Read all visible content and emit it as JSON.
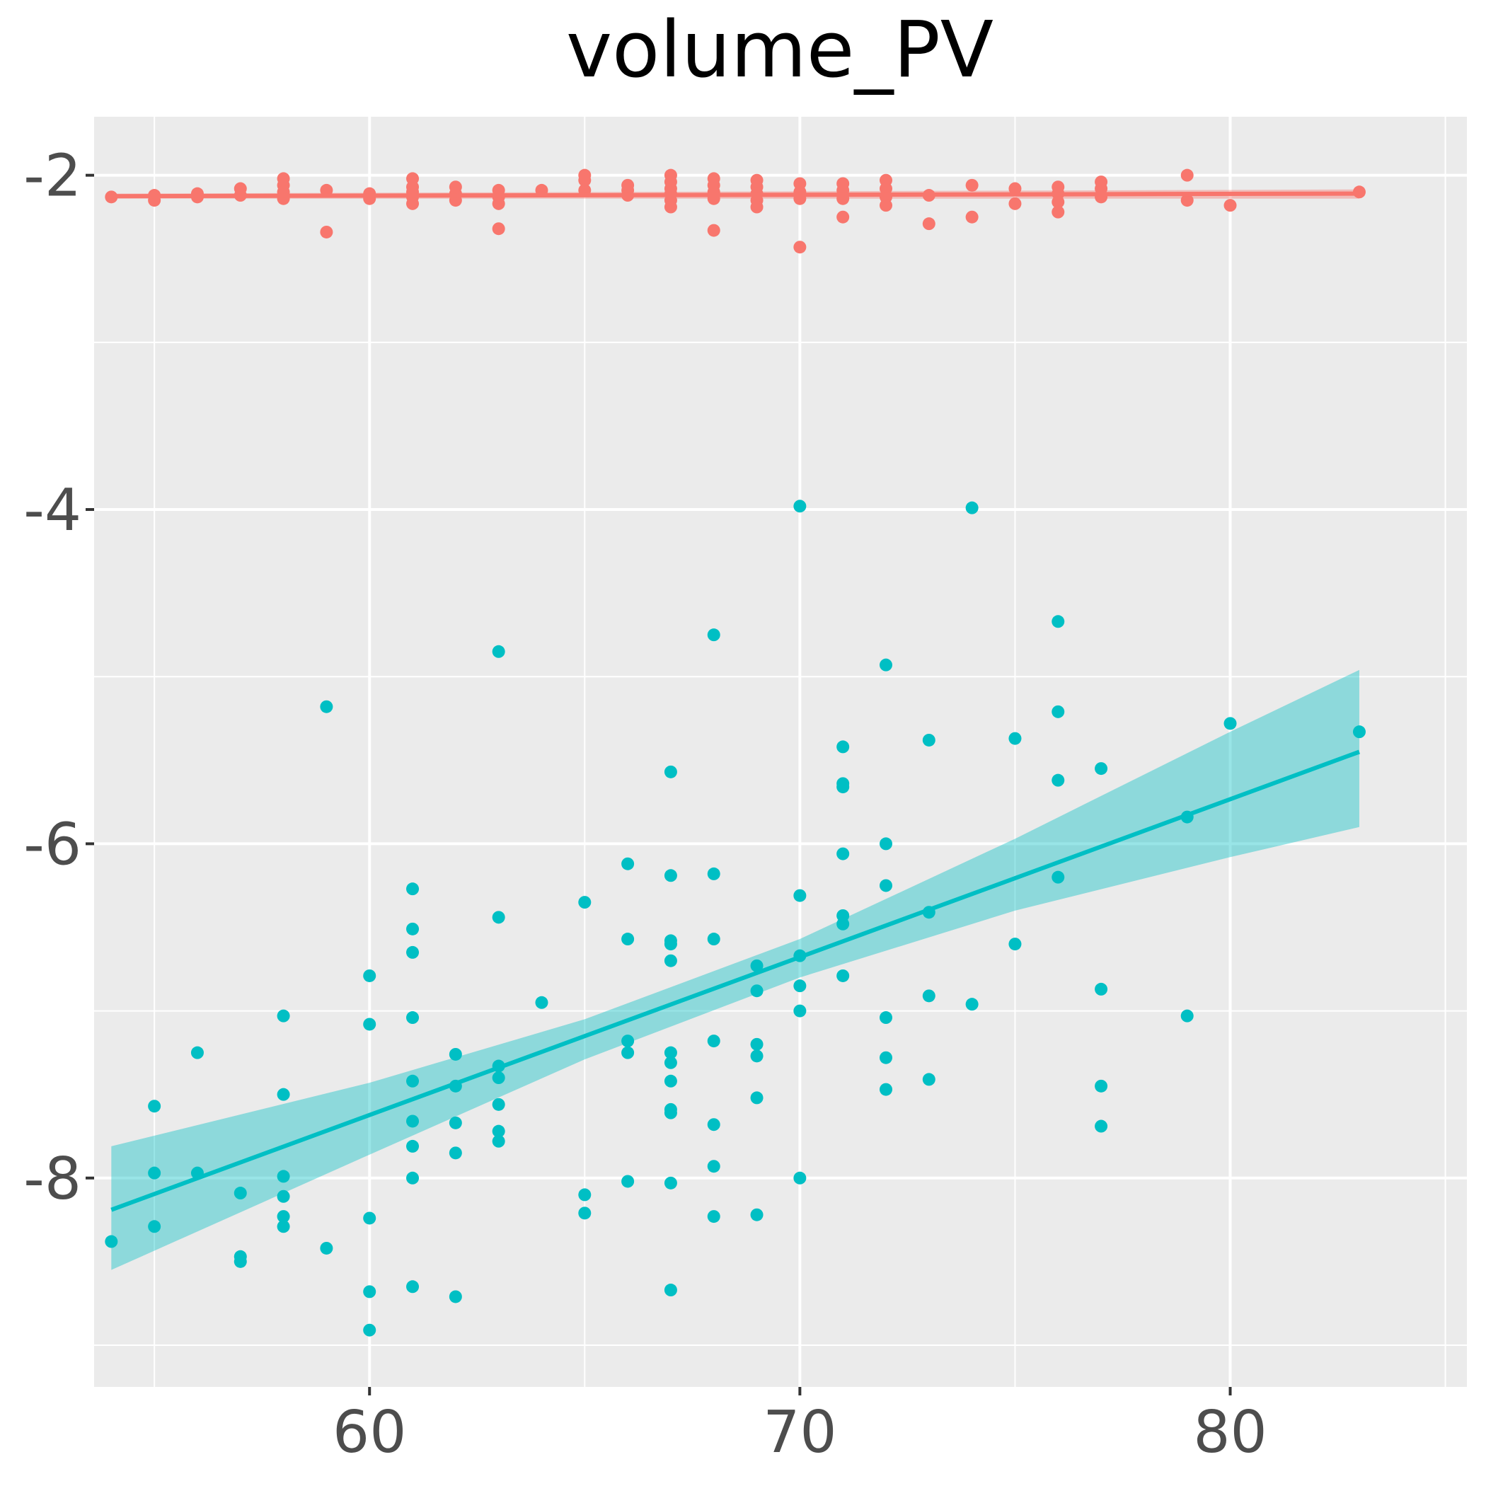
{
  "chart_data": {
    "type": "scatter",
    "title": "volume_PV",
    "xlabel": "",
    "ylabel": "",
    "xlim": [
      53.6,
      85.5
    ],
    "ylim": [
      -9.25,
      -1.65
    ],
    "x_ticks": [
      60,
      70,
      80
    ],
    "y_ticks": [
      -2,
      -4,
      -6,
      -8
    ],
    "grid": true,
    "legend": "none",
    "colors": {
      "panel": "#ebebeb",
      "grid": "#ffffff",
      "series_red": "#f8766d",
      "series_teal": "#00bfc4",
      "ribbon_teal": "#00bfc4"
    },
    "series": [
      {
        "color": "#f8766d",
        "points": [
          [
            54,
            -2.13
          ],
          [
            55,
            -2.12
          ],
          [
            55,
            -2.15
          ],
          [
            56,
            -2.11
          ],
          [
            56,
            -2.13
          ],
          [
            57,
            -2.08
          ],
          [
            57,
            -2.12
          ],
          [
            58,
            -2.02
          ],
          [
            58,
            -2.06
          ],
          [
            58,
            -2.1
          ],
          [
            58,
            -2.14
          ],
          [
            59,
            -2.09
          ],
          [
            59,
            -2.34
          ],
          [
            60,
            -2.11
          ],
          [
            60,
            -2.14
          ],
          [
            61,
            -2.02
          ],
          [
            61,
            -2.07
          ],
          [
            61,
            -2.1
          ],
          [
            61,
            -2.13
          ],
          [
            61,
            -2.17
          ],
          [
            62,
            -2.07
          ],
          [
            62,
            -2.11
          ],
          [
            62,
            -2.15
          ],
          [
            63,
            -2.09
          ],
          [
            63,
            -2.13
          ],
          [
            63,
            -2.17
          ],
          [
            63,
            -2.32
          ],
          [
            64,
            -2.09
          ],
          [
            65,
            -2.0
          ],
          [
            65,
            -2.03
          ],
          [
            65,
            -2.09
          ],
          [
            66,
            -2.06
          ],
          [
            66,
            -2.09
          ],
          [
            66,
            -2.12
          ],
          [
            67,
            -2.0
          ],
          [
            67,
            -2.04
          ],
          [
            67,
            -2.08
          ],
          [
            67,
            -2.11
          ],
          [
            67,
            -2.15
          ],
          [
            67,
            -2.19
          ],
          [
            68,
            -2.02
          ],
          [
            68,
            -2.06
          ],
          [
            68,
            -2.1
          ],
          [
            68,
            -2.14
          ],
          [
            68,
            -2.33
          ],
          [
            69,
            -2.03
          ],
          [
            69,
            -2.07
          ],
          [
            69,
            -2.11
          ],
          [
            69,
            -2.15
          ],
          [
            69,
            -2.19
          ],
          [
            70,
            -2.05
          ],
          [
            70,
            -2.1
          ],
          [
            70,
            -2.14
          ],
          [
            70,
            -2.43
          ],
          [
            71,
            -2.05
          ],
          [
            71,
            -2.09
          ],
          [
            71,
            -2.14
          ],
          [
            71,
            -2.25
          ],
          [
            72,
            -2.03
          ],
          [
            72,
            -2.08
          ],
          [
            72,
            -2.13
          ],
          [
            72,
            -2.18
          ],
          [
            73,
            -2.12
          ],
          [
            73,
            -2.29
          ],
          [
            74,
            -2.06
          ],
          [
            74,
            -2.25
          ],
          [
            75,
            -2.08
          ],
          [
            75,
            -2.17
          ],
          [
            76,
            -2.07
          ],
          [
            76,
            -2.11
          ],
          [
            76,
            -2.16
          ],
          [
            76,
            -2.22
          ],
          [
            77,
            -2.04
          ],
          [
            77,
            -2.08
          ],
          [
            77,
            -2.13
          ],
          [
            79,
            -2.0
          ],
          [
            79,
            -2.15
          ],
          [
            80,
            -2.18
          ],
          [
            83,
            -2.1
          ]
        ],
        "fit": [
          [
            54,
            -2.125
          ],
          [
            83,
            -2.11
          ]
        ],
        "band": [
          [
            54,
            -2.14,
            -2.11
          ],
          [
            83,
            -2.14,
            -2.085
          ]
        ]
      },
      {
        "color": "#00bfc4",
        "points": [
          [
            54,
            -8.38
          ],
          [
            55,
            -7.57
          ],
          [
            55,
            -7.97
          ],
          [
            55,
            -8.29
          ],
          [
            56,
            -7.25
          ],
          [
            56,
            -7.97
          ],
          [
            57,
            -8.09
          ],
          [
            57,
            -8.47
          ],
          [
            57,
            -8.5
          ],
          [
            58,
            -7.03
          ],
          [
            58,
            -7.5
          ],
          [
            58,
            -7.99
          ],
          [
            58,
            -8.11
          ],
          [
            58,
            -8.23
          ],
          [
            58,
            -8.29
          ],
          [
            59,
            -5.18
          ],
          [
            59,
            -8.42
          ],
          [
            60,
            -6.79
          ],
          [
            60,
            -7.08
          ],
          [
            60,
            -8.24
          ],
          [
            60,
            -8.68
          ],
          [
            60,
            -8.91
          ],
          [
            61,
            -6.27
          ],
          [
            61,
            -6.51
          ],
          [
            61,
            -6.65
          ],
          [
            61,
            -7.04
          ],
          [
            61,
            -7.42
          ],
          [
            61,
            -7.66
          ],
          [
            61,
            -7.81
          ],
          [
            61,
            -8.0
          ],
          [
            61,
            -8.65
          ],
          [
            62,
            -7.26
          ],
          [
            62,
            -7.45
          ],
          [
            62,
            -7.67
          ],
          [
            62,
            -7.85
          ],
          [
            62,
            -8.71
          ],
          [
            63,
            -4.85
          ],
          [
            63,
            -6.44
          ],
          [
            63,
            -7.33
          ],
          [
            63,
            -7.4
          ],
          [
            63,
            -7.56
          ],
          [
            63,
            -7.72
          ],
          [
            63,
            -7.78
          ],
          [
            64,
            -6.95
          ],
          [
            65,
            -6.35
          ],
          [
            65,
            -8.1
          ],
          [
            65,
            -8.21
          ],
          [
            66,
            -6.12
          ],
          [
            66,
            -6.57
          ],
          [
            66,
            -7.18
          ],
          [
            66,
            -7.25
          ],
          [
            66,
            -8.02
          ],
          [
            67,
            -5.57
          ],
          [
            67,
            -6.19
          ],
          [
            67,
            -6.58
          ],
          [
            67,
            -6.6
          ],
          [
            67,
            -6.7
          ],
          [
            67,
            -7.25
          ],
          [
            67,
            -7.31
          ],
          [
            67,
            -7.42
          ],
          [
            67,
            -7.59
          ],
          [
            67,
            -7.61
          ],
          [
            67,
            -8.03
          ],
          [
            67,
            -8.67
          ],
          [
            68,
            -4.75
          ],
          [
            68,
            -6.18
          ],
          [
            68,
            -6.57
          ],
          [
            68,
            -7.18
          ],
          [
            68,
            -7.68
          ],
          [
            68,
            -7.93
          ],
          [
            68,
            -8.23
          ],
          [
            69,
            -6.73
          ],
          [
            69,
            -6.88
          ],
          [
            69,
            -7.2
          ],
          [
            69,
            -7.27
          ],
          [
            69,
            -7.52
          ],
          [
            69,
            -8.22
          ],
          [
            70,
            -3.98
          ],
          [
            70,
            -6.31
          ],
          [
            70,
            -6.67
          ],
          [
            70,
            -6.85
          ],
          [
            70,
            -7.0
          ],
          [
            70,
            -8.0
          ],
          [
            71,
            -5.42
          ],
          [
            71,
            -5.64
          ],
          [
            71,
            -5.66
          ],
          [
            71,
            -6.06
          ],
          [
            71,
            -6.43
          ],
          [
            71,
            -6.48
          ],
          [
            71,
            -6.79
          ],
          [
            72,
            -4.93
          ],
          [
            72,
            -6.0
          ],
          [
            72,
            -6.25
          ],
          [
            72,
            -7.04
          ],
          [
            72,
            -7.28
          ],
          [
            72,
            -7.47
          ],
          [
            73,
            -5.38
          ],
          [
            73,
            -6.41
          ],
          [
            73,
            -6.91
          ],
          [
            73,
            -7.41
          ],
          [
            74,
            -3.99
          ],
          [
            74,
            -6.96
          ],
          [
            75,
            -5.37
          ],
          [
            75,
            -6.6
          ],
          [
            76,
            -4.67
          ],
          [
            76,
            -5.21
          ],
          [
            76,
            -5.62
          ],
          [
            76,
            -6.2
          ],
          [
            77,
            -5.55
          ],
          [
            77,
            -6.87
          ],
          [
            77,
            -7.45
          ],
          [
            77,
            -7.69
          ],
          [
            79,
            -5.84
          ],
          [
            79,
            -7.03
          ],
          [
            80,
            -5.28
          ],
          [
            83,
            -5.33
          ]
        ],
        "fit": [
          [
            54,
            -8.19
          ],
          [
            83,
            -5.45
          ]
        ],
        "band": [
          [
            54,
            -7.81,
            -8.55
          ],
          [
            60,
            -7.43,
            -7.86
          ],
          [
            65,
            -7.05,
            -7.29
          ],
          [
            70,
            -6.57,
            -6.8
          ],
          [
            75,
            -5.97,
            -6.4
          ],
          [
            80,
            -5.33,
            -6.08
          ],
          [
            83,
            -4.96,
            -5.9
          ]
        ]
      }
    ]
  }
}
